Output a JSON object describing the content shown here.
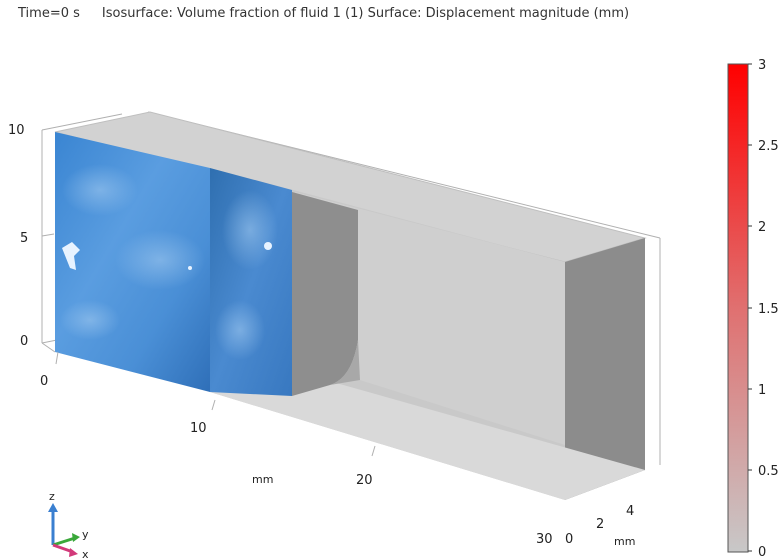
{
  "header": {
    "time_label": "Time=0 s",
    "plot_desc": "Isosurface: Volume fraction of fluid 1 (1)  Surface: Displacement magnitude (mm)"
  },
  "axes": {
    "z_ticks": [
      "10",
      "5",
      "0"
    ],
    "x_ticks": [
      "0",
      "10",
      "20",
      "30"
    ],
    "y_ticks": [
      "0",
      "2",
      "4"
    ],
    "x_unit": "mm",
    "y_unit": "mm"
  },
  "colorbar": {
    "ticks": [
      "3",
      "2.5",
      "2",
      "1.5",
      "1",
      "0.5",
      "0"
    ],
    "color_top": "#ff0000",
    "color_bottom": "#c8c8c8"
  },
  "triad": {
    "z": "z",
    "y": "y",
    "x": "x",
    "z_color": "#3a7fd0",
    "y_color": "#3aa83a",
    "x_color": "#d23a7a"
  },
  "colors": {
    "fluid": "#4a8fd6",
    "solid_light": "#d4d4d4",
    "solid_dark": "#8a8a8a"
  }
}
